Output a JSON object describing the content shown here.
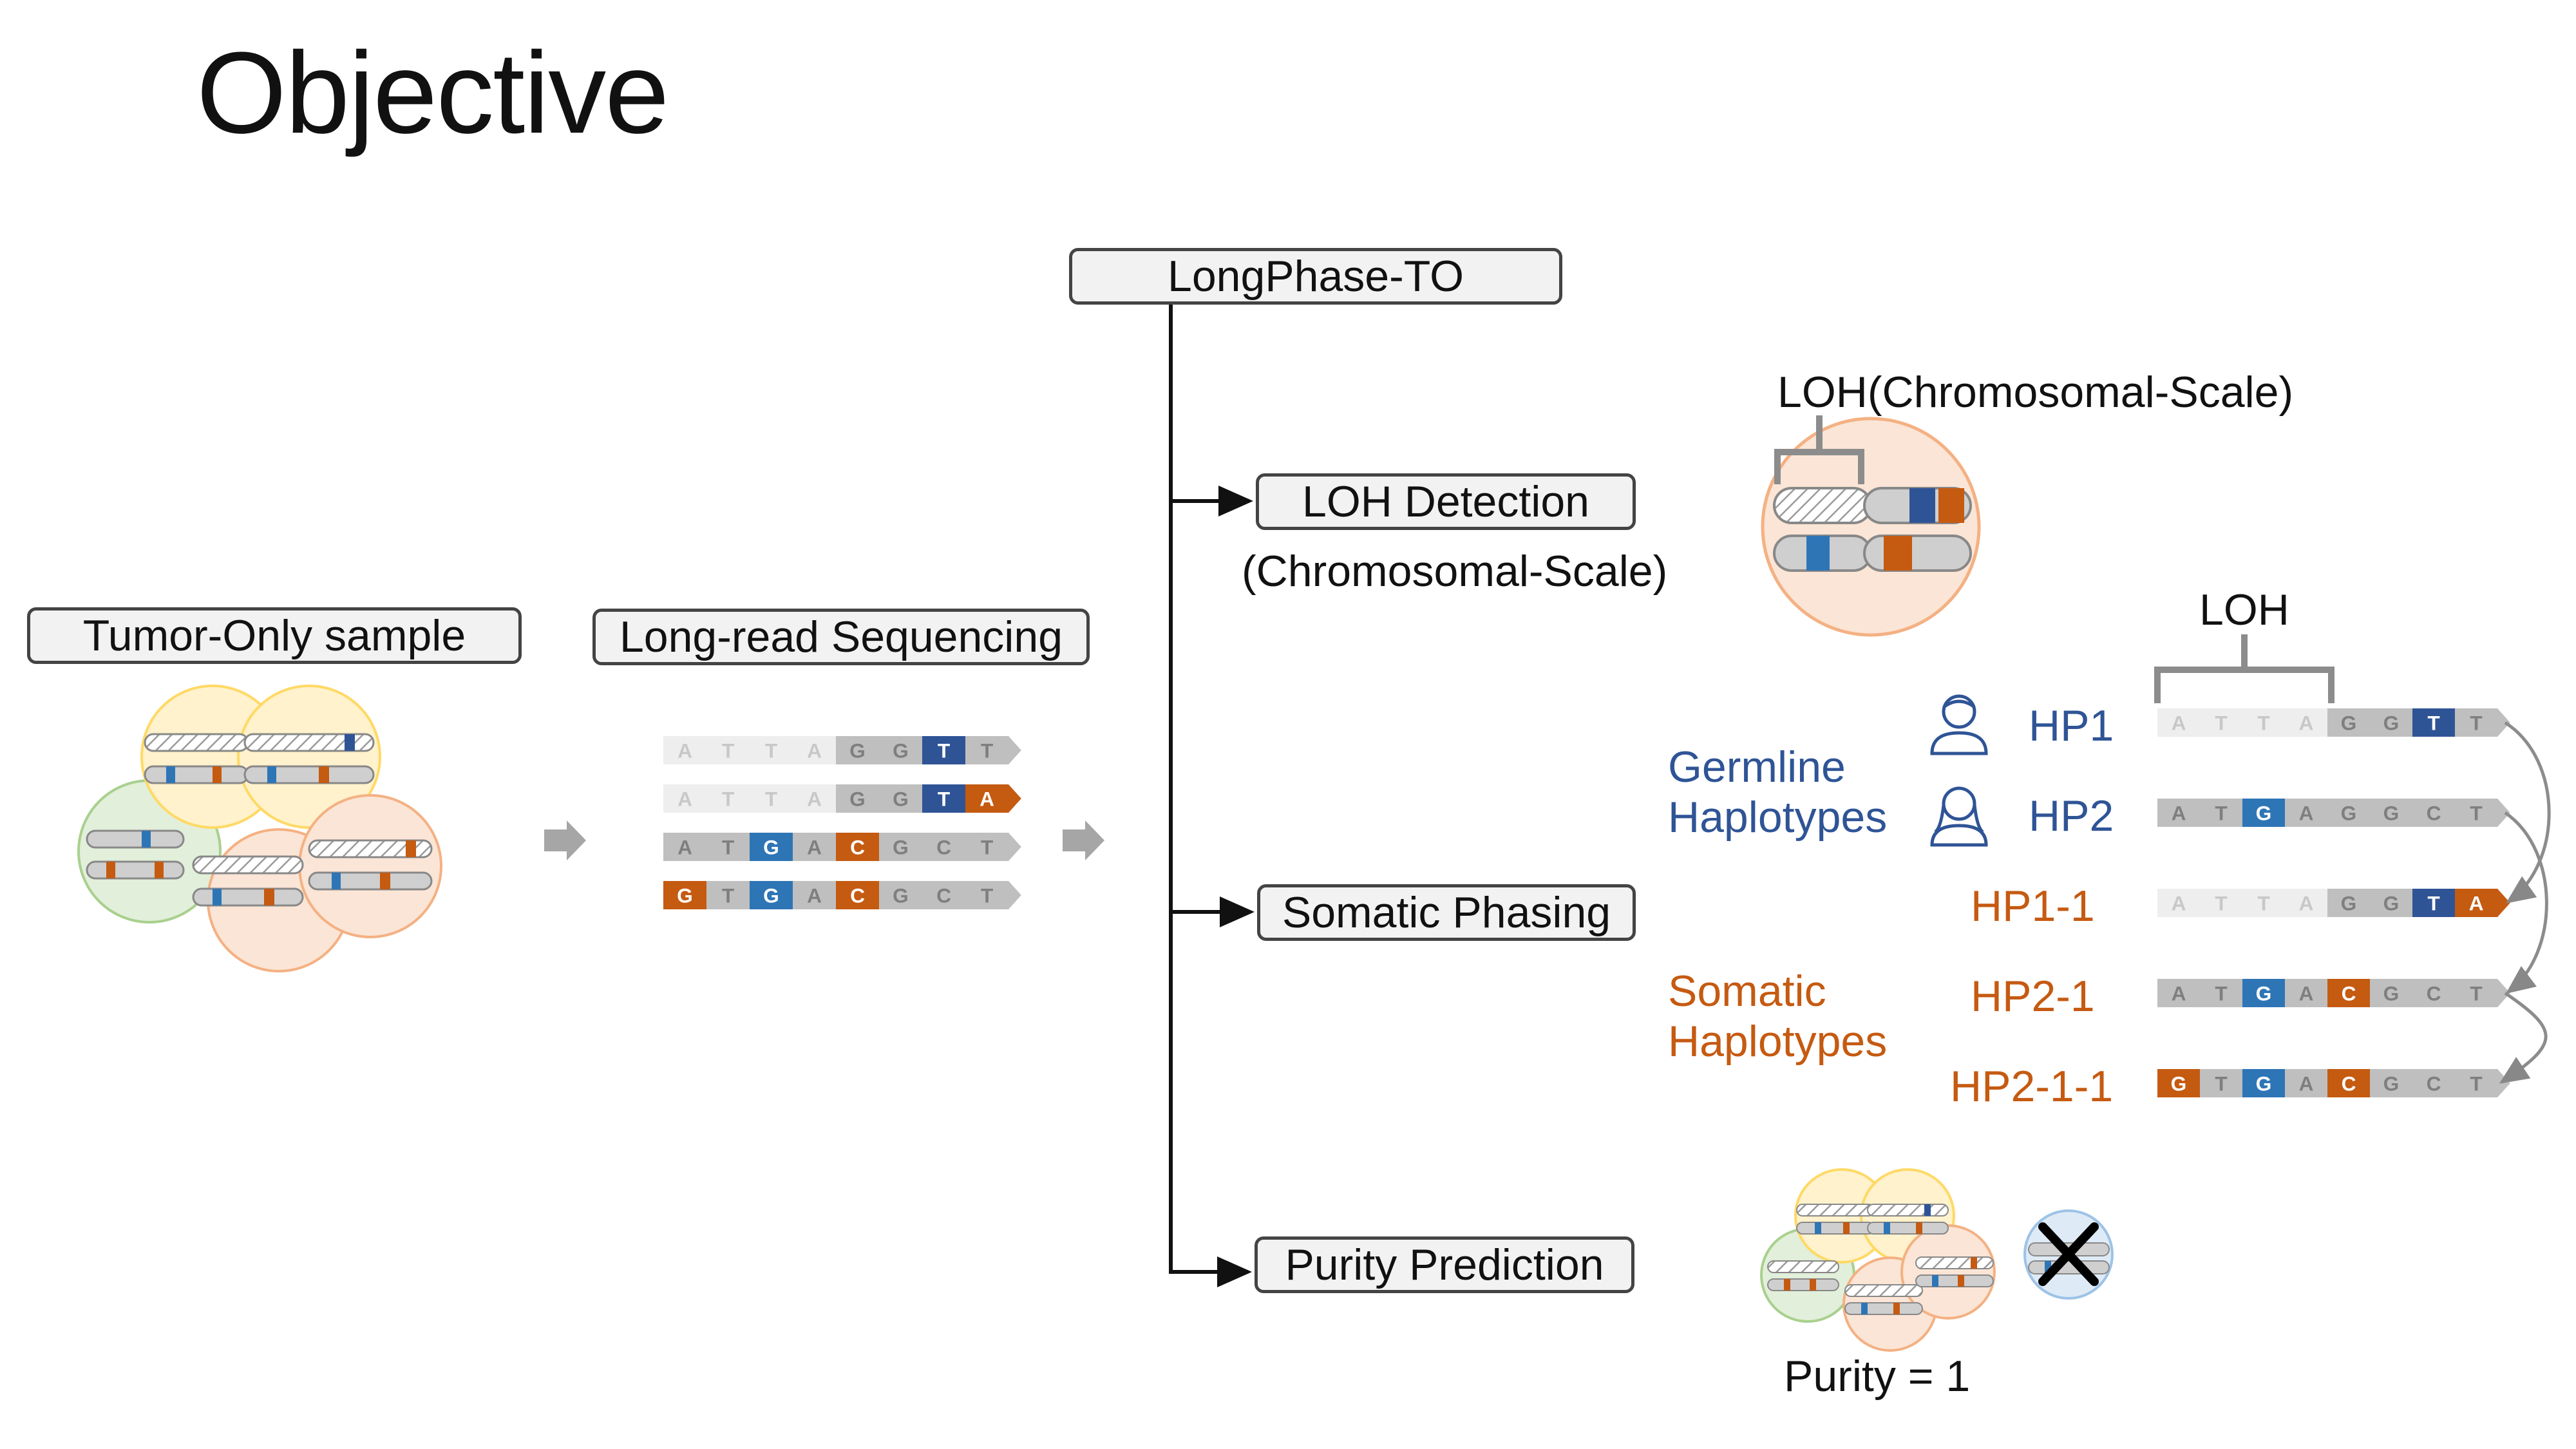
{
  "slide": {
    "title": "Objective"
  },
  "nodes": {
    "root": "LongPhase-TO",
    "tumor": "Tumor-Only sample",
    "sequencing": "Long-read Sequencing",
    "loh": "LOH Detection",
    "loh_sub": "(Chromosomal-Scale)",
    "somatic": "Somatic Phasing",
    "purity": "Purity Prediction"
  },
  "loh_panel": {
    "label": "LOH(Chromosomal-Scale)"
  },
  "phasing_panel": {
    "loh_label": "LOH",
    "germline_label_1": "Germline",
    "germline_label_2": "Haplotypes",
    "somatic_label_1": "Somatic",
    "somatic_label_2": "Haplotypes",
    "haplotypes": [
      {
        "name": "HP1",
        "bases": [
          "A",
          "T",
          "T",
          "A",
          "G",
          "G",
          "T",
          "T"
        ]
      },
      {
        "name": "HP2",
        "bases": [
          "A",
          "T",
          "G",
          "A",
          "G",
          "G",
          "C",
          "T"
        ]
      },
      {
        "name": "HP1-1",
        "bases": [
          "A",
          "T",
          "T",
          "A",
          "G",
          "G",
          "T",
          "A"
        ]
      },
      {
        "name": "HP2-1",
        "bases": [
          "A",
          "T",
          "G",
          "A",
          "C",
          "G",
          "C",
          "T"
        ]
      },
      {
        "name": "HP2-1-1",
        "bases": [
          "G",
          "T",
          "G",
          "A",
          "C",
          "G",
          "C",
          "T"
        ]
      }
    ]
  },
  "reads": [
    [
      "A",
      "T",
      "T",
      "A",
      "G",
      "G",
      "T",
      "T"
    ],
    [
      "A",
      "T",
      "T",
      "A",
      "G",
      "G",
      "T",
      "A"
    ],
    [
      "A",
      "T",
      "G",
      "A",
      "C",
      "G",
      "C",
      "T"
    ],
    [
      "G",
      "T",
      "G",
      "A",
      "C",
      "G",
      "C",
      "T"
    ]
  ],
  "purity_panel": {
    "label": "Purity = 1"
  },
  "colors": {
    "blue": "#2f5496",
    "orange": "#c55a11",
    "mid_blue": "#2e75b6",
    "light_gray": "#eeeeee",
    "gray": "#bfbfbf"
  }
}
